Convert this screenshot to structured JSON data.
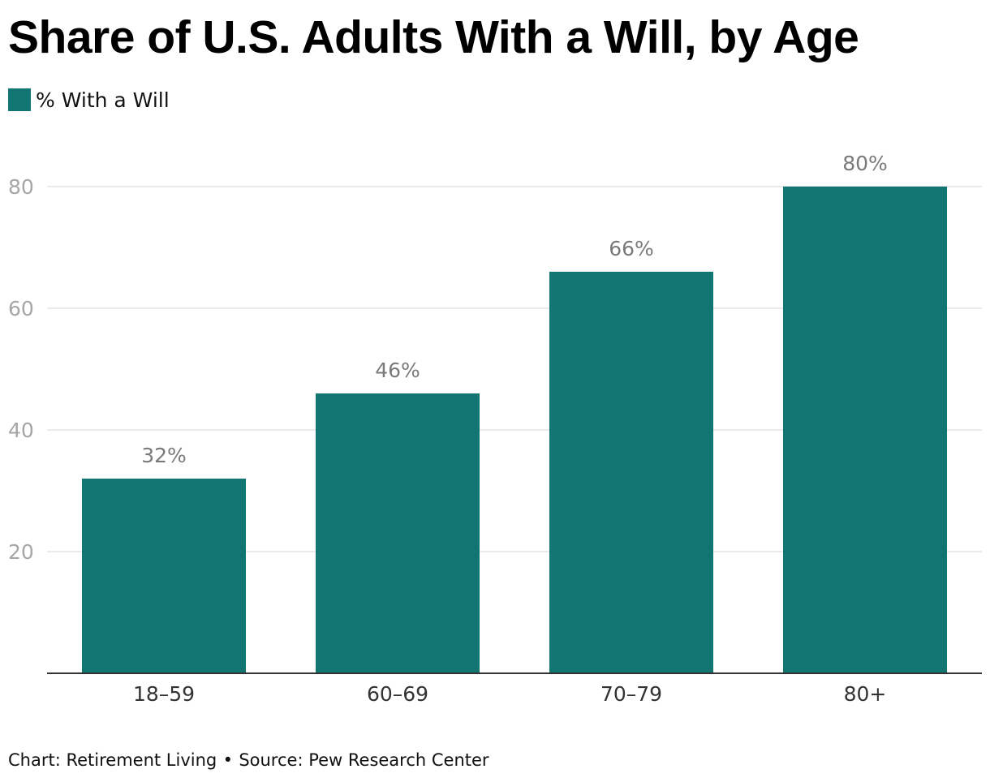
{
  "chart_data": {
    "type": "bar",
    "title": "Share of U.S. Adults With a Will, by Age",
    "xlabel": "",
    "ylabel": "",
    "categories": [
      "18–59",
      "60–69",
      "70–79",
      "80+"
    ],
    "series": [
      {
        "name": "% With a Will",
        "values": [
          32,
          46,
          66,
          80
        ],
        "data_labels": [
          "32%",
          "46%",
          "66%",
          "80%"
        ],
        "color": "#117572"
      }
    ],
    "ylim": [
      0,
      80
    ],
    "yticks": [
      20,
      40,
      60,
      80
    ],
    "grid": true,
    "legend_position": "top-left"
  },
  "footer": {
    "chart_credit": "Chart: Retirement Living",
    "separator": "•",
    "source": "Source: Pew Research Center"
  },
  "colors": {
    "bar": "#117572",
    "gridline": "#e3e3e3",
    "axis": "#333333",
    "tick_label": "#a6a6a6",
    "data_label": "#7a7a7a",
    "category_label": "#333333"
  }
}
